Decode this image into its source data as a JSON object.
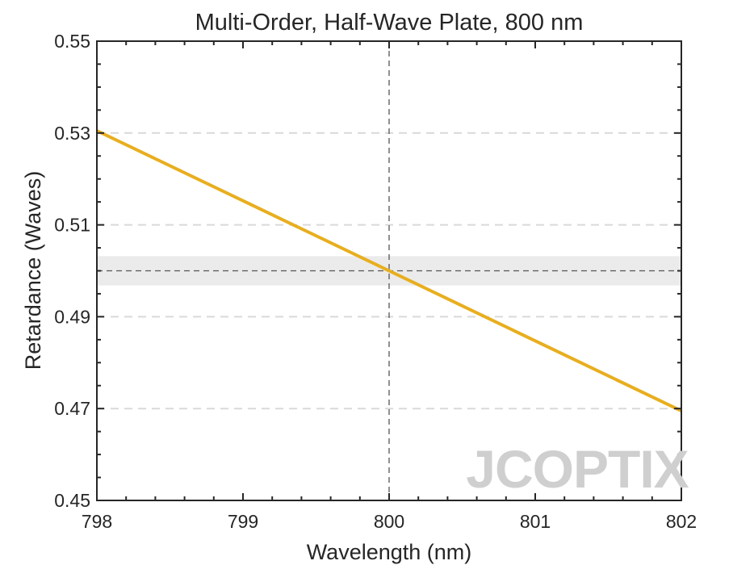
{
  "chart_data": {
    "type": "line",
    "title": "Multi-Order, Half-Wave Plate, 800 nm",
    "xlabel": "Wavelength (nm)",
    "ylabel": "Retardance (Waves)",
    "xlim": [
      798,
      802
    ],
    "ylim": [
      0.45,
      0.55
    ],
    "x_ticks": [
      798,
      799,
      800,
      801,
      802
    ],
    "y_ticks": [
      0.45,
      0.47,
      0.49,
      0.51,
      0.53,
      0.55
    ],
    "x_tick_labels": [
      "798",
      "799",
      "800",
      "801",
      "802"
    ],
    "y_tick_labels": [
      "0.45",
      "0.47",
      "0.49",
      "0.51",
      "0.53",
      "0.55"
    ],
    "grid": "horizontal dashed",
    "series": [
      {
        "name": "Retardance",
        "color": "#E8AE1E",
        "x": [
          798,
          802
        ],
        "y": [
          0.5305,
          0.4695
        ]
      }
    ],
    "reference_lines": {
      "vertical_x": 800,
      "horizontal_y": 0.5,
      "tolerance_band": [
        0.4968,
        0.5032
      ]
    }
  },
  "watermark": {
    "text": "JCOPTIX"
  },
  "colors": {
    "series": "#E8AE1E",
    "axis": "#262626",
    "grid": "#d9d9d9",
    "band": "#ebebeb",
    "watermark": "#cfcfcf",
    "watermark_accent": "#f5d9b8"
  }
}
